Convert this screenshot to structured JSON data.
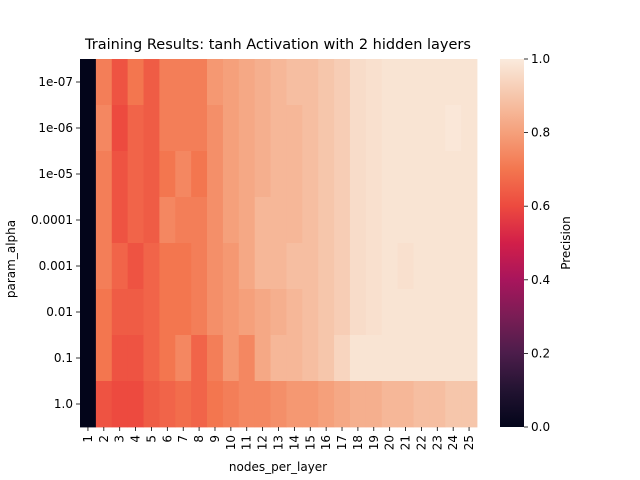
{
  "chart_data": {
    "type": "heatmap",
    "title": "Training Results: tanh Activation with 2 hidden layers",
    "xlabel": "nodes_per_layer",
    "ylabel": "param_alpha",
    "x_categories": [
      "1",
      "2",
      "3",
      "4",
      "5",
      "6",
      "7",
      "8",
      "9",
      "10",
      "11",
      "12",
      "13",
      "14",
      "15",
      "16",
      "17",
      "18",
      "19",
      "20",
      "21",
      "22",
      "23",
      "24",
      "25"
    ],
    "y_categories": [
      "1e-07",
      "1e-06",
      "1e-05",
      "0.0001",
      "0.001",
      "0.01",
      "0.1",
      "1.0"
    ],
    "colorbar": {
      "label": "Precision",
      "range": [
        0.0,
        1.0
      ],
      "ticks": [
        "0.0",
        "0.2",
        "0.4",
        "0.6",
        "0.8",
        "1.0"
      ],
      "colormap": "rocket"
    },
    "values": [
      [
        0.0,
        0.72,
        0.62,
        0.7,
        0.64,
        0.72,
        0.72,
        0.72,
        0.78,
        0.8,
        0.82,
        0.84,
        0.86,
        0.88,
        0.88,
        0.9,
        0.92,
        0.96,
        0.97,
        0.98,
        0.98,
        0.98,
        0.98,
        0.98,
        0.98
      ],
      [
        0.0,
        0.74,
        0.6,
        0.66,
        0.64,
        0.72,
        0.72,
        0.72,
        0.76,
        0.8,
        0.82,
        0.84,
        0.86,
        0.86,
        0.88,
        0.9,
        0.92,
        0.96,
        0.97,
        0.98,
        0.98,
        0.98,
        0.98,
        0.99,
        0.98
      ],
      [
        0.0,
        0.72,
        0.62,
        0.66,
        0.64,
        0.7,
        0.74,
        0.7,
        0.76,
        0.8,
        0.82,
        0.84,
        0.86,
        0.86,
        0.88,
        0.9,
        0.92,
        0.96,
        0.97,
        0.98,
        0.98,
        0.98,
        0.98,
        0.98,
        0.98
      ],
      [
        0.0,
        0.72,
        0.62,
        0.66,
        0.64,
        0.74,
        0.72,
        0.72,
        0.76,
        0.8,
        0.82,
        0.86,
        0.86,
        0.86,
        0.88,
        0.9,
        0.92,
        0.96,
        0.97,
        0.98,
        0.98,
        0.98,
        0.98,
        0.98,
        0.98
      ],
      [
        0.0,
        0.72,
        0.66,
        0.62,
        0.66,
        0.7,
        0.7,
        0.72,
        0.76,
        0.78,
        0.82,
        0.86,
        0.86,
        0.88,
        0.88,
        0.9,
        0.92,
        0.96,
        0.97,
        0.98,
        0.97,
        0.98,
        0.98,
        0.98,
        0.98
      ],
      [
        0.0,
        0.7,
        0.64,
        0.64,
        0.66,
        0.7,
        0.7,
        0.72,
        0.76,
        0.78,
        0.8,
        0.82,
        0.84,
        0.86,
        0.88,
        0.9,
        0.92,
        0.96,
        0.97,
        0.98,
        0.98,
        0.98,
        0.98,
        0.98,
        0.98
      ],
      [
        0.0,
        0.7,
        0.62,
        0.62,
        0.66,
        0.7,
        0.74,
        0.66,
        0.72,
        0.78,
        0.74,
        0.82,
        0.86,
        0.86,
        0.88,
        0.9,
        0.94,
        0.98,
        0.98,
        0.98,
        0.98,
        0.98,
        0.98,
        0.98,
        0.98
      ],
      [
        0.0,
        0.62,
        0.6,
        0.6,
        0.64,
        0.66,
        0.68,
        0.66,
        0.7,
        0.72,
        0.74,
        0.74,
        0.76,
        0.78,
        0.78,
        0.8,
        0.82,
        0.84,
        0.84,
        0.86,
        0.86,
        0.88,
        0.88,
        0.9,
        0.9
      ]
    ]
  }
}
